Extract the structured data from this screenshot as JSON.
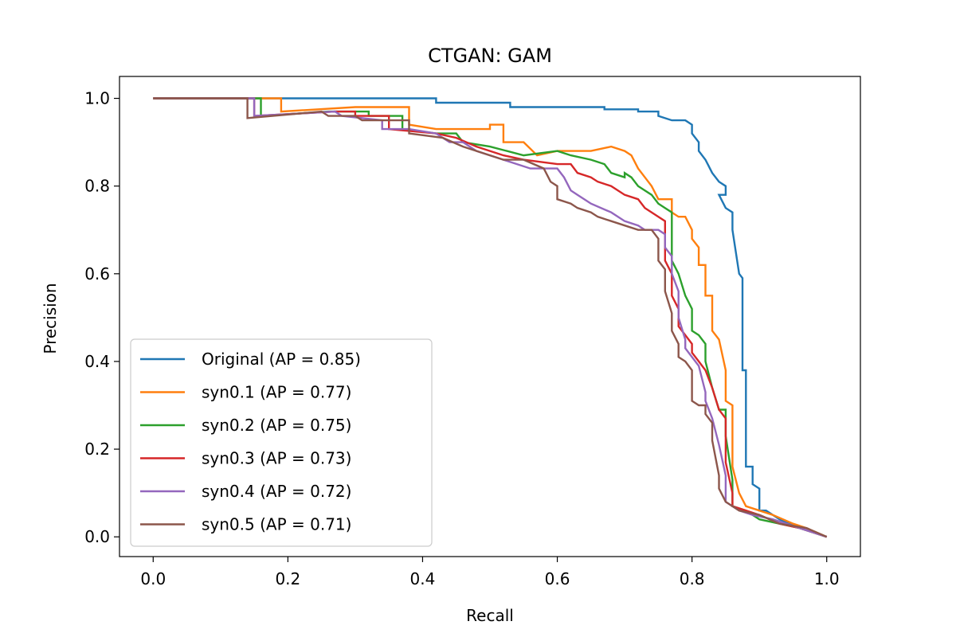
{
  "chart_data": {
    "type": "line",
    "title": "CTGAN: GAM",
    "xlabel": "Recall",
    "ylabel": "Precision",
    "xlim": [
      -0.05,
      1.05
    ],
    "ylim": [
      -0.045,
      1.05
    ],
    "xticks": [
      0.0,
      0.2,
      0.4,
      0.6,
      0.8,
      1.0
    ],
    "xtick_labels": [
      "0.0",
      "0.2",
      "0.4",
      "0.6",
      "0.8",
      "1.0"
    ],
    "yticks": [
      0.0,
      0.2,
      0.4,
      0.6,
      0.8,
      1.0
    ],
    "ytick_labels": [
      "0.0",
      "0.2",
      "0.4",
      "0.6",
      "0.8",
      "1.0"
    ],
    "grid": false,
    "legend_position": "lower-left",
    "series": [
      {
        "name": "Original (AP = 0.85)",
        "color": "#1f77b4",
        "points": [
          [
            0.0,
            1.0
          ],
          [
            0.42,
            1.0
          ],
          [
            0.42,
            0.99
          ],
          [
            0.53,
            0.99
          ],
          [
            0.53,
            0.98
          ],
          [
            0.67,
            0.98
          ],
          [
            0.67,
            0.975
          ],
          [
            0.72,
            0.975
          ],
          [
            0.72,
            0.97
          ],
          [
            0.75,
            0.97
          ],
          [
            0.75,
            0.96
          ],
          [
            0.77,
            0.95
          ],
          [
            0.79,
            0.95
          ],
          [
            0.8,
            0.94
          ],
          [
            0.8,
            0.92
          ],
          [
            0.81,
            0.9
          ],
          [
            0.81,
            0.88
          ],
          [
            0.82,
            0.86
          ],
          [
            0.83,
            0.83
          ],
          [
            0.84,
            0.81
          ],
          [
            0.85,
            0.8
          ],
          [
            0.85,
            0.78
          ],
          [
            0.84,
            0.78
          ],
          [
            0.85,
            0.75
          ],
          [
            0.86,
            0.74
          ],
          [
            0.86,
            0.7
          ],
          [
            0.865,
            0.65
          ],
          [
            0.87,
            0.6
          ],
          [
            0.875,
            0.59
          ],
          [
            0.875,
            0.38
          ],
          [
            0.88,
            0.38
          ],
          [
            0.88,
            0.16
          ],
          [
            0.89,
            0.16
          ],
          [
            0.89,
            0.12
          ],
          [
            0.9,
            0.11
          ],
          [
            0.9,
            0.06
          ],
          [
            0.91,
            0.06
          ],
          [
            0.92,
            0.05
          ],
          [
            0.93,
            0.04
          ],
          [
            0.96,
            0.02
          ],
          [
            1.0,
            0.0
          ]
        ]
      },
      {
        "name": "syn0.1 (AP = 0.77)",
        "color": "#ff7f0e",
        "points": [
          [
            0.0,
            1.0
          ],
          [
            0.19,
            1.0
          ],
          [
            0.19,
            0.97
          ],
          [
            0.3,
            0.98
          ],
          [
            0.38,
            0.98
          ],
          [
            0.38,
            0.94
          ],
          [
            0.42,
            0.93
          ],
          [
            0.44,
            0.93
          ],
          [
            0.5,
            0.93
          ],
          [
            0.5,
            0.94
          ],
          [
            0.52,
            0.94
          ],
          [
            0.52,
            0.9
          ],
          [
            0.55,
            0.9
          ],
          [
            0.57,
            0.87
          ],
          [
            0.6,
            0.88
          ],
          [
            0.65,
            0.88
          ],
          [
            0.68,
            0.89
          ],
          [
            0.7,
            0.88
          ],
          [
            0.71,
            0.87
          ],
          [
            0.72,
            0.84
          ],
          [
            0.73,
            0.82
          ],
          [
            0.74,
            0.8
          ],
          [
            0.75,
            0.77
          ],
          [
            0.77,
            0.77
          ],
          [
            0.77,
            0.74
          ],
          [
            0.78,
            0.73
          ],
          [
            0.79,
            0.73
          ],
          [
            0.8,
            0.7
          ],
          [
            0.8,
            0.68
          ],
          [
            0.81,
            0.66
          ],
          [
            0.81,
            0.62
          ],
          [
            0.82,
            0.62
          ],
          [
            0.82,
            0.55
          ],
          [
            0.83,
            0.55
          ],
          [
            0.83,
            0.47
          ],
          [
            0.84,
            0.45
          ],
          [
            0.85,
            0.38
          ],
          [
            0.85,
            0.31
          ],
          [
            0.86,
            0.3
          ],
          [
            0.86,
            0.16
          ],
          [
            0.87,
            0.1
          ],
          [
            0.88,
            0.07
          ],
          [
            0.9,
            0.06
          ],
          [
            0.92,
            0.05
          ],
          [
            0.95,
            0.03
          ],
          [
            0.97,
            0.02
          ],
          [
            1.0,
            0.0
          ]
        ]
      },
      {
        "name": "syn0.2 (AP = 0.75)",
        "color": "#2ca02c",
        "points": [
          [
            0.0,
            1.0
          ],
          [
            0.16,
            1.0
          ],
          [
            0.16,
            0.96
          ],
          [
            0.26,
            0.97
          ],
          [
            0.32,
            0.97
          ],
          [
            0.32,
            0.96
          ],
          [
            0.37,
            0.96
          ],
          [
            0.37,
            0.93
          ],
          [
            0.42,
            0.92
          ],
          [
            0.45,
            0.92
          ],
          [
            0.46,
            0.9
          ],
          [
            0.5,
            0.89
          ],
          [
            0.55,
            0.87
          ],
          [
            0.6,
            0.88
          ],
          [
            0.62,
            0.87
          ],
          [
            0.65,
            0.86
          ],
          [
            0.67,
            0.85
          ],
          [
            0.68,
            0.83
          ],
          [
            0.7,
            0.82
          ],
          [
            0.7,
            0.83
          ],
          [
            0.71,
            0.82
          ],
          [
            0.72,
            0.8
          ],
          [
            0.73,
            0.79
          ],
          [
            0.74,
            0.78
          ],
          [
            0.75,
            0.76
          ],
          [
            0.76,
            0.75
          ],
          [
            0.77,
            0.74
          ],
          [
            0.77,
            0.63
          ],
          [
            0.78,
            0.6
          ],
          [
            0.79,
            0.55
          ],
          [
            0.8,
            0.52
          ],
          [
            0.8,
            0.47
          ],
          [
            0.81,
            0.46
          ],
          [
            0.82,
            0.44
          ],
          [
            0.82,
            0.4
          ],
          [
            0.83,
            0.34
          ],
          [
            0.84,
            0.29
          ],
          [
            0.85,
            0.29
          ],
          [
            0.85,
            0.23
          ],
          [
            0.86,
            0.13
          ],
          [
            0.86,
            0.07
          ],
          [
            0.88,
            0.06
          ],
          [
            0.9,
            0.04
          ],
          [
            0.93,
            0.03
          ],
          [
            0.96,
            0.02
          ],
          [
            1.0,
            0.0
          ]
        ]
      },
      {
        "name": "syn0.3 (AP = 0.73)",
        "color": "#d62728",
        "points": [
          [
            0.0,
            1.0
          ],
          [
            0.15,
            1.0
          ],
          [
            0.15,
            0.96
          ],
          [
            0.27,
            0.97
          ],
          [
            0.3,
            0.97
          ],
          [
            0.3,
            0.96
          ],
          [
            0.35,
            0.96
          ],
          [
            0.35,
            0.93
          ],
          [
            0.42,
            0.92
          ],
          [
            0.45,
            0.91
          ],
          [
            0.48,
            0.89
          ],
          [
            0.52,
            0.87
          ],
          [
            0.55,
            0.86
          ],
          [
            0.6,
            0.85
          ],
          [
            0.62,
            0.85
          ],
          [
            0.63,
            0.83
          ],
          [
            0.65,
            0.82
          ],
          [
            0.66,
            0.81
          ],
          [
            0.68,
            0.8
          ],
          [
            0.7,
            0.78
          ],
          [
            0.72,
            0.77
          ],
          [
            0.73,
            0.75
          ],
          [
            0.75,
            0.73
          ],
          [
            0.76,
            0.72
          ],
          [
            0.76,
            0.68
          ],
          [
            0.76,
            0.63
          ],
          [
            0.77,
            0.6
          ],
          [
            0.77,
            0.55
          ],
          [
            0.78,
            0.52
          ],
          [
            0.78,
            0.48
          ],
          [
            0.79,
            0.46
          ],
          [
            0.8,
            0.44
          ],
          [
            0.8,
            0.42
          ],
          [
            0.81,
            0.4
          ],
          [
            0.82,
            0.38
          ],
          [
            0.83,
            0.34
          ],
          [
            0.84,
            0.29
          ],
          [
            0.85,
            0.27
          ],
          [
            0.85,
            0.17
          ],
          [
            0.86,
            0.1
          ],
          [
            0.86,
            0.07
          ],
          [
            0.88,
            0.06
          ],
          [
            0.9,
            0.05
          ],
          [
            0.93,
            0.03
          ],
          [
            0.96,
            0.02
          ],
          [
            1.0,
            0.0
          ]
        ]
      },
      {
        "name": "syn0.4 (AP = 0.72)",
        "color": "#9467bd",
        "points": [
          [
            0.0,
            1.0
          ],
          [
            0.15,
            1.0
          ],
          [
            0.15,
            0.96
          ],
          [
            0.27,
            0.97
          ],
          [
            0.28,
            0.96
          ],
          [
            0.34,
            0.95
          ],
          [
            0.34,
            0.93
          ],
          [
            0.38,
            0.93
          ],
          [
            0.42,
            0.92
          ],
          [
            0.44,
            0.9
          ],
          [
            0.46,
            0.9
          ],
          [
            0.48,
            0.88
          ],
          [
            0.5,
            0.87
          ],
          [
            0.52,
            0.86
          ],
          [
            0.56,
            0.84
          ],
          [
            0.6,
            0.84
          ],
          [
            0.61,
            0.82
          ],
          [
            0.62,
            0.79
          ],
          [
            0.63,
            0.78
          ],
          [
            0.64,
            0.77
          ],
          [
            0.65,
            0.76
          ],
          [
            0.68,
            0.74
          ],
          [
            0.7,
            0.72
          ],
          [
            0.72,
            0.71
          ],
          [
            0.73,
            0.7
          ],
          [
            0.75,
            0.7
          ],
          [
            0.76,
            0.69
          ],
          [
            0.76,
            0.66
          ],
          [
            0.77,
            0.64
          ],
          [
            0.77,
            0.6
          ],
          [
            0.78,
            0.56
          ],
          [
            0.78,
            0.5
          ],
          [
            0.79,
            0.45
          ],
          [
            0.79,
            0.43
          ],
          [
            0.8,
            0.41
          ],
          [
            0.81,
            0.39
          ],
          [
            0.82,
            0.33
          ],
          [
            0.82,
            0.31
          ],
          [
            0.83,
            0.27
          ],
          [
            0.84,
            0.21
          ],
          [
            0.85,
            0.14
          ],
          [
            0.85,
            0.08
          ],
          [
            0.87,
            0.06
          ],
          [
            0.89,
            0.05
          ],
          [
            0.92,
            0.04
          ],
          [
            0.96,
            0.02
          ],
          [
            1.0,
            0.0
          ]
        ]
      },
      {
        "name": "syn0.5 (AP = 0.71)",
        "color": "#8c564b",
        "points": [
          [
            0.0,
            1.0
          ],
          [
            0.14,
            1.0
          ],
          [
            0.14,
            0.955
          ],
          [
            0.25,
            0.97
          ],
          [
            0.26,
            0.96
          ],
          [
            0.3,
            0.96
          ],
          [
            0.31,
            0.95
          ],
          [
            0.38,
            0.95
          ],
          [
            0.38,
            0.92
          ],
          [
            0.43,
            0.91
          ],
          [
            0.46,
            0.89
          ],
          [
            0.48,
            0.88
          ],
          [
            0.5,
            0.87
          ],
          [
            0.52,
            0.86
          ],
          [
            0.55,
            0.86
          ],
          [
            0.58,
            0.84
          ],
          [
            0.59,
            0.81
          ],
          [
            0.6,
            0.8
          ],
          [
            0.6,
            0.78
          ],
          [
            0.6,
            0.77
          ],
          [
            0.62,
            0.76
          ],
          [
            0.63,
            0.75
          ],
          [
            0.65,
            0.74
          ],
          [
            0.66,
            0.73
          ],
          [
            0.68,
            0.72
          ],
          [
            0.7,
            0.71
          ],
          [
            0.72,
            0.7
          ],
          [
            0.74,
            0.7
          ],
          [
            0.75,
            0.68
          ],
          [
            0.75,
            0.63
          ],
          [
            0.76,
            0.61
          ],
          [
            0.76,
            0.56
          ],
          [
            0.77,
            0.51
          ],
          [
            0.77,
            0.47
          ],
          [
            0.78,
            0.44
          ],
          [
            0.78,
            0.41
          ],
          [
            0.79,
            0.4
          ],
          [
            0.8,
            0.38
          ],
          [
            0.8,
            0.36
          ],
          [
            0.8,
            0.31
          ],
          [
            0.81,
            0.3
          ],
          [
            0.82,
            0.3
          ],
          [
            0.82,
            0.28
          ],
          [
            0.83,
            0.26
          ],
          [
            0.83,
            0.22
          ],
          [
            0.84,
            0.14
          ],
          [
            0.84,
            0.11
          ],
          [
            0.85,
            0.08
          ],
          [
            0.87,
            0.06
          ],
          [
            0.9,
            0.05
          ],
          [
            0.93,
            0.03
          ],
          [
            0.97,
            0.02
          ],
          [
            1.0,
            0.0
          ]
        ]
      }
    ]
  }
}
